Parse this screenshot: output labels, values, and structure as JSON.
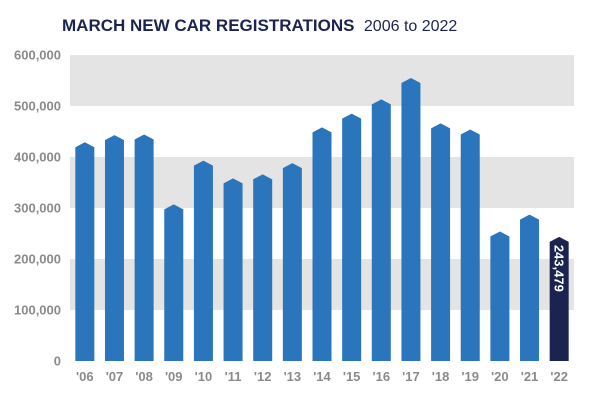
{
  "chart_data": {
    "type": "bar",
    "title": "MARCH NEW CAR REGISTRATIONS",
    "subtitle": "2006 to 2022",
    "categories": [
      "'06",
      "'07",
      "'08",
      "'09",
      "'10",
      "'11",
      "'12",
      "'13",
      "'14",
      "'15",
      "'16",
      "'17",
      "'18",
      "'19",
      "'20",
      "'21",
      "'22"
    ],
    "values": [
      429000,
      443000,
      444000,
      307000,
      393000,
      358000,
      366000,
      388000,
      458000,
      485000,
      513000,
      555000,
      466000,
      454000,
      254000,
      287000,
      243479
    ],
    "ylim": [
      0,
      600000
    ],
    "yticks": [
      0,
      100000,
      200000,
      300000,
      400000,
      500000,
      600000
    ],
    "ytick_labels": [
      "0",
      "100,000",
      "200,000",
      "300,000",
      "400,000",
      "500,000",
      "600,000"
    ],
    "xlabel": "",
    "ylabel": "",
    "grid": "alternating horizontal bands",
    "highlight_index": 16,
    "data_label": "243,479",
    "colors": {
      "bar": "#2a75bb",
      "highlight_bar": "#1b2350",
      "band": "#e4e4e5",
      "title": "#1b2350",
      "axis_text": "#8a8a8a"
    }
  }
}
